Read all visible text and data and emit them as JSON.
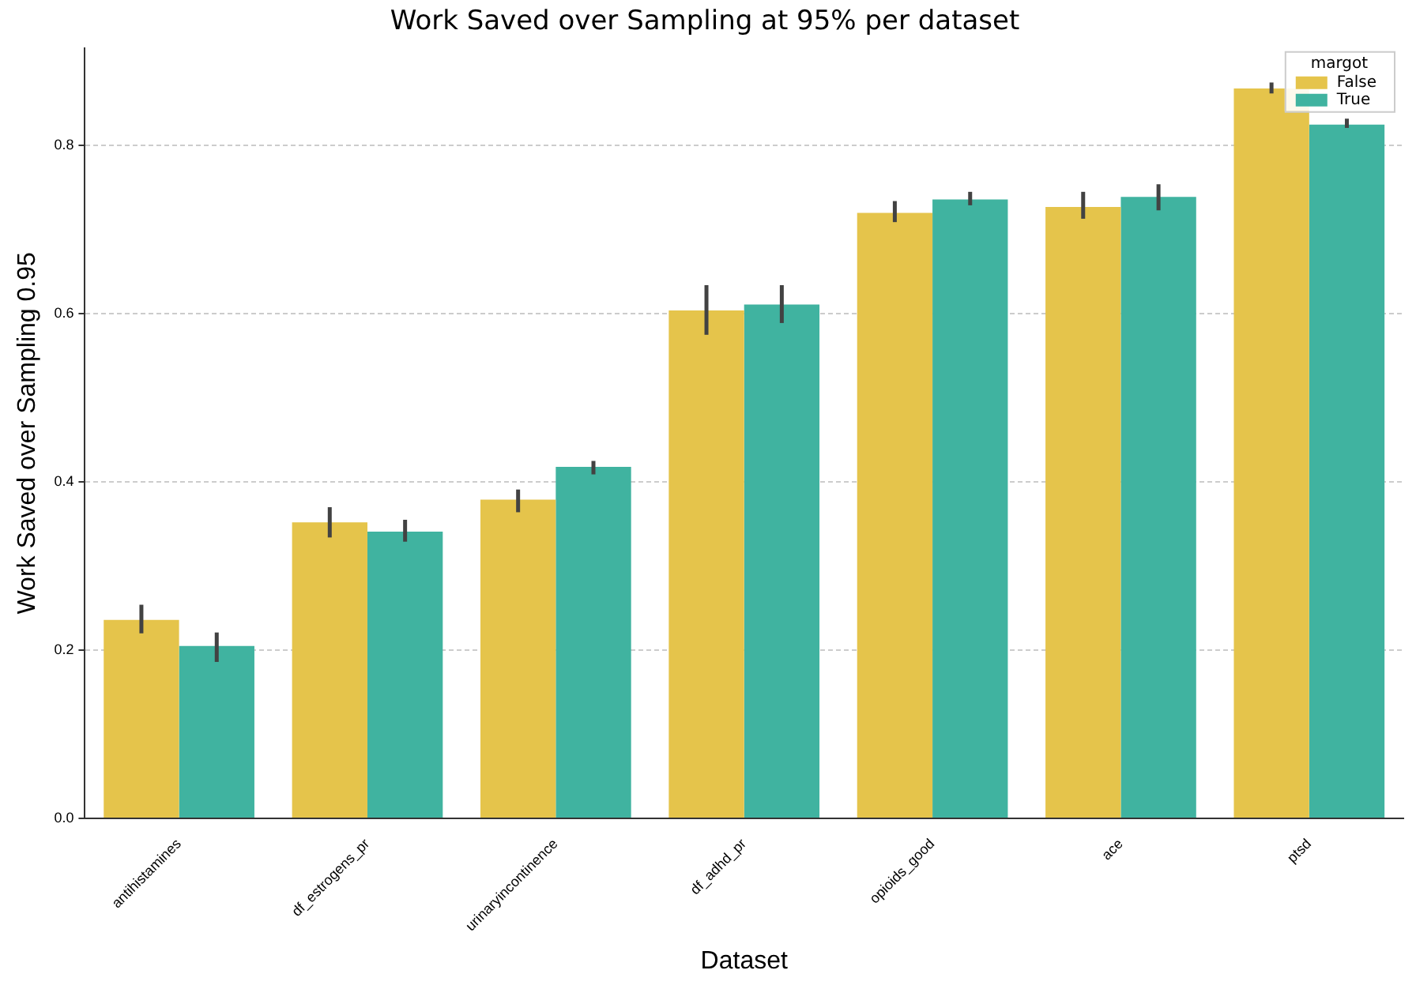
{
  "chart_data": {
    "type": "bar",
    "title": "Work Saved over Sampling at 95% per dataset",
    "xlabel": "Dataset",
    "ylabel": "Work Saved over Sampling 0.95",
    "legend_title": "margot",
    "categories": [
      "antihistamines",
      "df_estrogens_pr",
      "urinaryincontinence",
      "df_adhd_pr",
      "opioids_good",
      "ace",
      "ptsd"
    ],
    "series": [
      {
        "name": "False",
        "color": "#e5c44b",
        "values": [
          0.236,
          0.352,
          0.379,
          0.604,
          0.72,
          0.727,
          0.868
        ],
        "errors": [
          [
            0.22,
            0.254
          ],
          [
            0.334,
            0.37
          ],
          [
            0.364,
            0.391
          ],
          [
            0.575,
            0.634
          ],
          [
            0.709,
            0.734
          ],
          [
            0.713,
            0.745
          ],
          [
            0.862,
            0.875
          ]
        ]
      },
      {
        "name": "True",
        "color": "#40b3a0",
        "values": [
          0.205,
          0.341,
          0.418,
          0.611,
          0.736,
          0.739,
          0.825
        ],
        "errors": [
          [
            0.186,
            0.221
          ],
          [
            0.329,
            0.355
          ],
          [
            0.409,
            0.425
          ],
          [
            0.589,
            0.634
          ],
          [
            0.729,
            0.745
          ],
          [
            0.723,
            0.754
          ],
          [
            0.821,
            0.832
          ]
        ]
      }
    ],
    "ylim": [
      0,
      0.916
    ],
    "yticks": [
      {
        "value": 0,
        "label": "0.0"
      },
      {
        "value": 0.2,
        "label": "0.2"
      },
      {
        "value": 0.4,
        "label": "0.4"
      },
      {
        "value": 0.6,
        "label": "0.6"
      },
      {
        "value": 0.8,
        "label": "0.8"
      }
    ],
    "grid": "y",
    "legend": "top right"
  }
}
